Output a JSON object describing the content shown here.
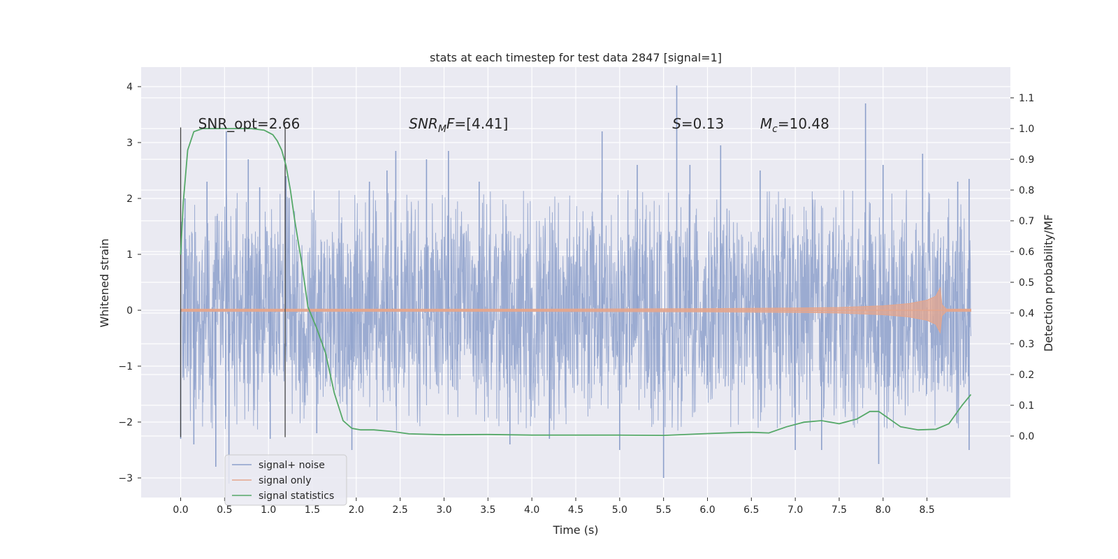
{
  "chart_data": {
    "type": "line",
    "title": "stats at each timestep for test data 2847 [signal=1]",
    "xlabel": "Time (s)",
    "ylabel_left": "Whitened strain",
    "ylabel_right": "Detection probability/MF",
    "xlim": [
      -0.45,
      9.45
    ],
    "ylim_left": [
      -3.35,
      4.35
    ],
    "ylim_right": [
      -0.2,
      1.2
    ],
    "x_ticks": [
      0.0,
      0.5,
      1.0,
      1.5,
      2.0,
      2.5,
      3.0,
      3.5,
      4.0,
      4.5,
      5.0,
      5.5,
      6.0,
      6.5,
      7.0,
      7.5,
      8.0,
      8.5
    ],
    "x_tick_labels": [
      "0.0",
      "0.5",
      "1.0",
      "1.5",
      "2.0",
      "2.5",
      "3.0",
      "3.5",
      "4.0",
      "4.5",
      "5.0",
      "5.5",
      "6.0",
      "6.5",
      "7.0",
      "7.5",
      "8.0",
      "8.5"
    ],
    "y_left_ticks": [
      -3,
      -2,
      -1,
      0,
      1,
      2,
      3,
      4
    ],
    "y_left_tick_labels": [
      "−3",
      "−2",
      "−1",
      "0",
      "1",
      "2",
      "3",
      "4"
    ],
    "y_right_ticks": [
      0.0,
      0.1,
      0.2,
      0.3,
      0.4,
      0.5,
      0.6,
      0.7,
      0.8,
      0.9,
      1.0,
      1.1
    ],
    "y_right_tick_labels": [
      "0.0",
      "0.1",
      "0.2",
      "0.3",
      "0.4",
      "0.5",
      "0.6",
      "0.7",
      "0.8",
      "0.9",
      "1.0",
      "1.1"
    ],
    "grid": true,
    "legend_position": "lower-left",
    "annotations": [
      {
        "x": 0.2,
        "y": 3.25,
        "text": "SNR_opt=2.66"
      },
      {
        "x": 2.6,
        "y": 3.25,
        "text_italic": "SNR",
        "text_sub": "M",
        "text_italic2": "F",
        "text_rest": "=[4.41]"
      },
      {
        "x": 5.6,
        "y": 3.25,
        "text_italic": "S",
        "text_rest": "=0.13"
      },
      {
        "x": 6.6,
        "y": 3.25,
        "text_italic": "M",
        "text_sub": "c",
        "text_rest": "=10.48"
      }
    ],
    "vertical_markers": [
      {
        "x": 0.0,
        "y_range": [
          -2.27,
          3.27
        ]
      },
      {
        "x": 1.19,
        "y_range": [
          -2.27,
          3.27
        ]
      }
    ],
    "series": [
      {
        "name": "signal+ noise",
        "axis": "left",
        "color": "#8da0cb",
        "description_range": [
          0.0,
          9.0
        ],
        "typical_envelope": [
          -1.6,
          1.6
        ],
        "spikes": [
          {
            "x": 0.0,
            "y": -2.3
          },
          {
            "x": 0.05,
            "y": 2.0
          },
          {
            "x": 0.15,
            "y": -2.4
          },
          {
            "x": 0.3,
            "y": 2.3
          },
          {
            "x": 0.4,
            "y": -2.8
          },
          {
            "x": 0.52,
            "y": 3.2
          },
          {
            "x": 0.55,
            "y": -3.1
          },
          {
            "x": 0.77,
            "y": 2.7
          },
          {
            "x": 0.9,
            "y": 2.2
          },
          {
            "x": 1.02,
            "y": -2.3
          },
          {
            "x": 1.2,
            "y": 2.4
          },
          {
            "x": 1.55,
            "y": -2.2
          },
          {
            "x": 1.95,
            "y": -2.5
          },
          {
            "x": 2.15,
            "y": 2.3
          },
          {
            "x": 2.35,
            "y": 2.5
          },
          {
            "x": 2.45,
            "y": 2.85
          },
          {
            "x": 2.8,
            "y": 2.7
          },
          {
            "x": 3.05,
            "y": 2.85
          },
          {
            "x": 3.4,
            "y": 2.3
          },
          {
            "x": 3.75,
            "y": -2.4
          },
          {
            "x": 4.2,
            "y": -2.3
          },
          {
            "x": 4.8,
            "y": 3.2
          },
          {
            "x": 5.0,
            "y": -2.5
          },
          {
            "x": 5.2,
            "y": 2.6
          },
          {
            "x": 5.5,
            "y": -3.0
          },
          {
            "x": 5.65,
            "y": 4.02
          },
          {
            "x": 5.8,
            "y": 2.6
          },
          {
            "x": 6.15,
            "y": 2.95
          },
          {
            "x": 6.6,
            "y": 2.5
          },
          {
            "x": 7.0,
            "y": -2.5
          },
          {
            "x": 7.3,
            "y": -2.5
          },
          {
            "x": 7.8,
            "y": 3.7
          },
          {
            "x": 7.95,
            "y": -2.75
          },
          {
            "x": 8.0,
            "y": 2.6
          },
          {
            "x": 8.45,
            "y": 2.8
          },
          {
            "x": 8.85,
            "y": 2.3
          },
          {
            "x": 8.98,
            "y": -2.5
          },
          {
            "x": 8.98,
            "y": 2.35
          }
        ]
      },
      {
        "name": "signal only",
        "axis": "left",
        "color": "#e5a68c",
        "envelope": {
          "x": [
            0.0,
            2.0,
            4.0,
            6.0,
            7.0,
            7.5,
            8.0,
            8.3,
            8.5,
            8.6,
            8.65,
            8.67,
            8.72,
            9.0
          ],
          "amplitude": [
            0.02,
            0.02,
            0.02,
            0.03,
            0.04,
            0.05,
            0.08,
            0.12,
            0.18,
            0.25,
            0.4,
            0.1,
            0.02,
            0.02
          ]
        }
      },
      {
        "name": "signal statistics",
        "axis": "right",
        "color": "#55a868",
        "x": [
          0.0,
          0.03,
          0.08,
          0.15,
          0.25,
          0.4,
          0.6,
          0.8,
          0.95,
          1.05,
          1.1,
          1.15,
          1.2,
          1.25,
          1.3,
          1.38,
          1.45,
          1.55,
          1.65,
          1.75,
          1.85,
          1.95,
          2.05,
          2.2,
          2.4,
          2.6,
          3.0,
          3.5,
          4.0,
          4.5,
          5.0,
          5.5,
          6.0,
          6.3,
          6.5,
          6.7,
          6.9,
          7.1,
          7.3,
          7.5,
          7.7,
          7.85,
          7.95,
          8.05,
          8.2,
          8.4,
          8.6,
          8.75,
          8.9,
          9.0
        ],
        "values": [
          0.59,
          0.76,
          0.93,
          0.99,
          1.0,
          1.0,
          1.0,
          1.0,
          0.995,
          0.98,
          0.96,
          0.93,
          0.88,
          0.8,
          0.7,
          0.56,
          0.42,
          0.35,
          0.27,
          0.14,
          0.05,
          0.025,
          0.02,
          0.02,
          0.015,
          0.007,
          0.004,
          0.005,
          0.003,
          0.003,
          0.003,
          0.002,
          0.008,
          0.011,
          0.012,
          0.01,
          0.03,
          0.045,
          0.05,
          0.04,
          0.055,
          0.08,
          0.08,
          0.06,
          0.03,
          0.02,
          0.022,
          0.04,
          0.1,
          0.135
        ]
      }
    ]
  }
}
